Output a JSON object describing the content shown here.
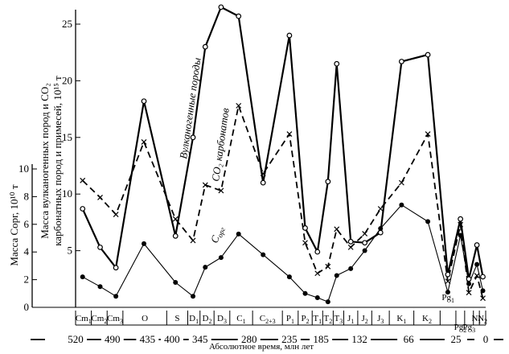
{
  "chart_data": {
    "type": "line",
    "axes": {
      "right": {
        "label": "Масса вулканогенных пород и CO₂ карбонатных пород и примесей, 10¹⁵ т",
        "ticks": [
          5,
          10,
          15,
          20,
          25
        ],
        "range": [
          0,
          27
        ]
      },
      "left": {
        "label": "Масса Cорг, 10¹⁰ т",
        "ticks": [
          0,
          2,
          4,
          6,
          8,
          10
        ],
        "range": [
          0,
          10.9
        ]
      },
      "x_title": "Абсолютное время, млн лет",
      "age_ticks": [
        {
          "label": "520",
          "x": 0
        },
        {
          "label": "490",
          "x": 1.05
        },
        {
          "label": "435",
          "x": 2.05
        },
        {
          "label": "400",
          "x": 2.75
        },
        {
          "label": "345",
          "x": 3.55
        },
        {
          "label": "280",
          "x": 4.95
        },
        {
          "label": "235",
          "x": 6.1
        },
        {
          "label": "185",
          "x": 7.0
        },
        {
          "label": "132",
          "x": 8.1
        },
        {
          "label": "66",
          "x": 9.5
        },
        {
          "label": "25",
          "x": 10.85
        },
        {
          "label": "0",
          "x": 11.7
        }
      ]
    },
    "periods": [
      {
        "label": "Cm",
        "sub": "1",
        "x_start": 0,
        "x_end": 0.45
      },
      {
        "label": "Cm",
        "sub": "2",
        "x_start": 0.45,
        "x_end": 0.9
      },
      {
        "label": "Cm",
        "sub": "3",
        "x_start": 0.9,
        "x_end": 1.35
      },
      {
        "label": "O",
        "sub": "",
        "x_start": 1.35,
        "x_end": 2.6
      },
      {
        "label": "S",
        "sub": "",
        "x_start": 2.6,
        "x_end": 3.2
      },
      {
        "label": "D",
        "sub": "1",
        "x_start": 3.2,
        "x_end": 3.55
      },
      {
        "label": "D",
        "sub": "2",
        "x_start": 3.55,
        "x_end": 3.95
      },
      {
        "label": "D",
        "sub": "3",
        "x_start": 3.95,
        "x_end": 4.4
      },
      {
        "label": "C",
        "sub": "1",
        "x_start": 4.4,
        "x_end": 5.05
      },
      {
        "label": "C",
        "sub": "2+3",
        "x_start": 5.05,
        "x_end": 5.9
      },
      {
        "label": "P",
        "sub": "1",
        "x_start": 5.9,
        "x_end": 6.35
      },
      {
        "label": "P",
        "sub": "2",
        "x_start": 6.35,
        "x_end": 6.75
      },
      {
        "label": "T",
        "sub": "1",
        "x_start": 6.75,
        "x_end": 7.05
      },
      {
        "label": "T",
        "sub": "2",
        "x_start": 7.05,
        "x_end": 7.35
      },
      {
        "label": "T",
        "sub": "3",
        "x_start": 7.35,
        "x_end": 7.65
      },
      {
        "label": "J",
        "sub": "1",
        "x_start": 7.65,
        "x_end": 8.05
      },
      {
        "label": "J",
        "sub": "2",
        "x_start": 8.05,
        "x_end": 8.45
      },
      {
        "label": "J",
        "sub": "3",
        "x_start": 8.45,
        "x_end": 8.95
      },
      {
        "label": "K",
        "sub": "1",
        "x_start": 8.95,
        "x_end": 9.65
      },
      {
        "label": "K",
        "sub": "2",
        "x_start": 9.65,
        "x_end": 10.4
      },
      {
        "label": "Pg",
        "sub": "1",
        "x_start": 10.4,
        "x_end": 10.85
      },
      {
        "label": "Pg",
        "sub": "2",
        "x_start": 10.85,
        "x_end": 11.1
      },
      {
        "label": "Pg",
        "sub": "3",
        "x_start": 11.1,
        "x_end": 11.35
      },
      {
        "label": "N",
        "sub": "1",
        "x_start": 11.35,
        "x_end": 11.52
      },
      {
        "label": "N",
        "sub": "2",
        "x_start": 11.52,
        "x_end": 11.7
      }
    ],
    "series": [
      {
        "name": "Вулканогенные породы",
        "axis": "right",
        "style": "solid-bold",
        "marker": "open-circle",
        "points": [
          {
            "x": 0.2,
            "y": 8.7
          },
          {
            "x": 0.7,
            "y": 5.3
          },
          {
            "x": 1.15,
            "y": 3.5
          },
          {
            "x": 1.95,
            "y": 18.2
          },
          {
            "x": 2.85,
            "y": 6.3
          },
          {
            "x": 3.35,
            "y": 15.0
          },
          {
            "x": 3.7,
            "y": 23.0
          },
          {
            "x": 4.15,
            "y": 26.5
          },
          {
            "x": 4.65,
            "y": 25.7
          },
          {
            "x": 5.35,
            "y": 11.0
          },
          {
            "x": 6.1,
            "y": 24.0
          },
          {
            "x": 6.55,
            "y": 7.0
          },
          {
            "x": 6.9,
            "y": 4.9
          },
          {
            "x": 7.2,
            "y": 11.1
          },
          {
            "x": 7.45,
            "y": 21.5
          },
          {
            "x": 7.85,
            "y": 5.8
          },
          {
            "x": 8.25,
            "y": 5.7
          },
          {
            "x": 8.7,
            "y": 6.6
          },
          {
            "x": 9.3,
            "y": 21.7
          },
          {
            "x": 10.05,
            "y": 22.3
          },
          {
            "x": 10.62,
            "y": 2.9
          },
          {
            "x": 10.98,
            "y": 7.8
          },
          {
            "x": 11.22,
            "y": 2.5
          },
          {
            "x": 11.45,
            "y": 5.5
          },
          {
            "x": 11.62,
            "y": 2.7
          }
        ]
      },
      {
        "name": "CO₂ карбонатов",
        "axis": "right",
        "style": "dashed",
        "marker": "cross",
        "points": [
          {
            "x": 0.2,
            "y": 11.2
          },
          {
            "x": 0.7,
            "y": 9.7
          },
          {
            "x": 1.15,
            "y": 8.2
          },
          {
            "x": 1.95,
            "y": 14.6
          },
          {
            "x": 2.85,
            "y": 7.8
          },
          {
            "x": 3.35,
            "y": 5.9
          },
          {
            "x": 3.7,
            "y": 10.8
          },
          {
            "x": 4.15,
            "y": 10.3
          },
          {
            "x": 4.65,
            "y": 17.8
          },
          {
            "x": 5.35,
            "y": 11.8
          },
          {
            "x": 6.1,
            "y": 15.3
          },
          {
            "x": 6.55,
            "y": 5.7
          },
          {
            "x": 6.9,
            "y": 3.0
          },
          {
            "x": 7.2,
            "y": 3.6
          },
          {
            "x": 7.45,
            "y": 6.9
          },
          {
            "x": 7.85,
            "y": 5.3
          },
          {
            "x": 8.25,
            "y": 6.5
          },
          {
            "x": 8.7,
            "y": 8.7
          },
          {
            "x": 9.3,
            "y": 11.0
          },
          {
            "x": 10.05,
            "y": 15.3
          },
          {
            "x": 10.62,
            "y": 2.3
          },
          {
            "x": 10.98,
            "y": 7.3
          },
          {
            "x": 11.22,
            "y": 1.3
          },
          {
            "x": 11.45,
            "y": 2.8
          },
          {
            "x": 11.62,
            "y": 0.8
          }
        ]
      },
      {
        "name": "Cорг",
        "axis": "left",
        "style": "solid-thin",
        "marker": "filled-circle",
        "points": [
          {
            "x": 0.2,
            "y": 2.2
          },
          {
            "x": 0.7,
            "y": 1.5
          },
          {
            "x": 1.15,
            "y": 0.8
          },
          {
            "x": 1.95,
            "y": 4.6
          },
          {
            "x": 2.85,
            "y": 1.8
          },
          {
            "x": 3.35,
            "y": 0.8
          },
          {
            "x": 3.7,
            "y": 2.9
          },
          {
            "x": 4.15,
            "y": 3.6
          },
          {
            "x": 4.65,
            "y": 5.3
          },
          {
            "x": 5.35,
            "y": 3.8
          },
          {
            "x": 6.1,
            "y": 2.2
          },
          {
            "x": 6.55,
            "y": 1.0
          },
          {
            "x": 6.9,
            "y": 0.7
          },
          {
            "x": 7.2,
            "y": 0.4
          },
          {
            "x": 7.45,
            "y": 2.3
          },
          {
            "x": 7.85,
            "y": 2.8
          },
          {
            "x": 8.25,
            "y": 4.1
          },
          {
            "x": 8.7,
            "y": 5.7
          },
          {
            "x": 9.3,
            "y": 7.4
          },
          {
            "x": 10.05,
            "y": 6.2
          },
          {
            "x": 10.62,
            "y": 1.1
          },
          {
            "x": 10.98,
            "y": 5.2
          },
          {
            "x": 11.22,
            "y": 1.7
          },
          {
            "x": 11.45,
            "y": 3.1
          },
          {
            "x": 11.62,
            "y": 1.2
          }
        ]
      }
    ],
    "annotations": {
      "volcanic": "Вулканогенные породы",
      "carbonates": "CO₂ карбонатов",
      "corg_main": "C",
      "corg_sub": "орг"
    }
  }
}
